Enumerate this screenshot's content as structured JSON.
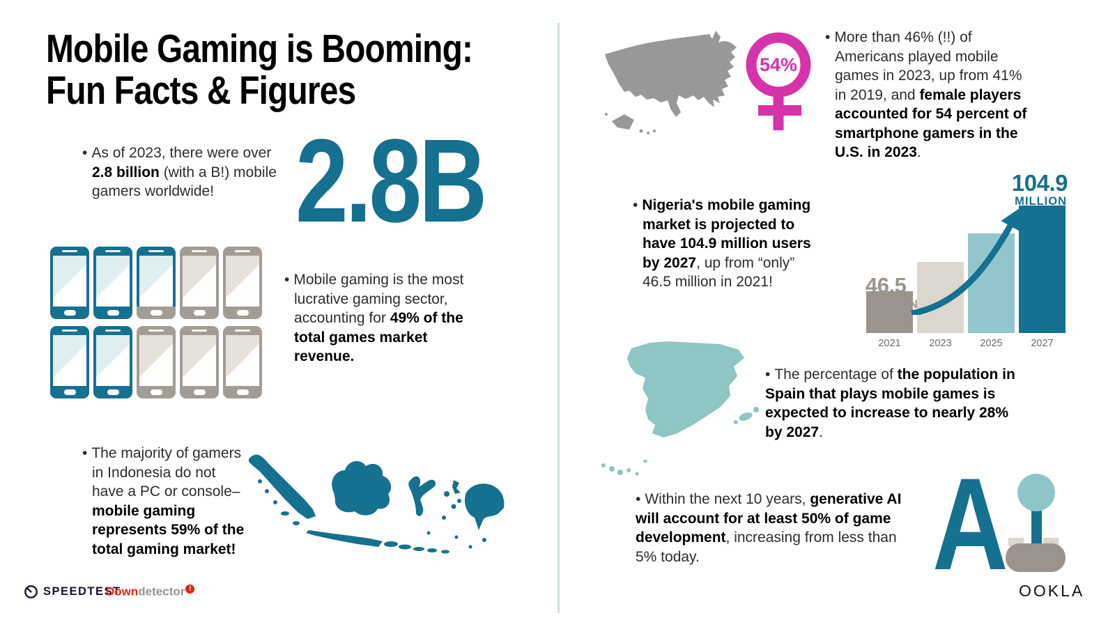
{
  "bullet": "•",
  "colors": {
    "teal": "#16708f",
    "teal_soft": "#8fc5c9",
    "teal_tint": "#dfeef0",
    "gray": "#9e9892",
    "beige": "#dcd7ce",
    "pink": "#d633ab",
    "red": "#e3231a",
    "navy": "#14152e",
    "divider": "#cddfe2"
  },
  "title": {
    "line1": "Mobile Gaming is Booming:",
    "line2": "Fun Facts & Figures"
  },
  "big_stat": {
    "value": "2.8B"
  },
  "female_badge": {
    "value": "54%"
  },
  "facts": {
    "worldwide": [
      {
        "t": "As of 2023, there were over "
      },
      {
        "t": "2.8 billion",
        "b": 1
      },
      {
        "t": " (with a B!) mobile gamers worldwide!"
      }
    ],
    "revenue": [
      {
        "t": "Mobile gaming is the most lucrative gaming sector, accounting for "
      },
      {
        "t": "49% of the total games market revenue.",
        "b": 1
      }
    ],
    "indonesia": [
      {
        "t": "The majority of gamers in Indonesia do not have a PC or console–"
      },
      {
        "t": "mobile gaming represents 59% of the total gaming market!",
        "b": 1
      }
    ],
    "usa": [
      {
        "t": "More than 46% (!!) of Americans played mobile games in 2023, up from 41% in 2019, and "
      },
      {
        "t": "female players accounted for 54 percent of smartphone gamers in the U.S. in 2023",
        "b": 1
      },
      {
        "t": "."
      }
    ],
    "nigeria": [
      {
        "t": "Nigeria's mobile gaming market is projected to have 104.9 million users by 2027",
        "b": 1
      },
      {
        "t": ", up from “only” 46.5 million in 2021!"
      }
    ],
    "spain": [
      {
        "t": "The percentage of "
      },
      {
        "t": "the population in Spain that plays mobile games is expected to increase to nearly 28% by 2027",
        "b": 1
      },
      {
        "t": "."
      }
    ],
    "ai": [
      {
        "t": "Within the next 10 years, "
      },
      {
        "t": "generative AI will account for at least 50% of game development",
        "b": 1
      },
      {
        "t": ", increasing from less than 5% today."
      }
    ]
  },
  "phones": {
    "states": [
      "teal",
      "teal",
      "partial",
      "gray",
      "gray",
      "teal",
      "teal",
      "gray",
      "gray",
      "gray"
    ]
  },
  "chart_data": {
    "type": "bar",
    "title": "",
    "categories": [
      "2021",
      "2023",
      "2025",
      "2027"
    ],
    "values": [
      46.5,
      66,
      85,
      104.9
    ],
    "unit": "million users",
    "start_label": {
      "value": "46.5",
      "unit": "MILLION"
    },
    "end_label": {
      "value": "104.9",
      "unit": "MILLION"
    },
    "bar_colors": [
      "#9b948c",
      "#dcd7ce",
      "#93c6cc",
      "#16708f"
    ],
    "bar_height_pct": [
      33,
      56,
      78,
      100
    ],
    "ylim": [
      0,
      110
    ],
    "grid": false,
    "legend": false
  },
  "ai_graphic": {
    "letter": "A"
  },
  "footer": {
    "speedtest": {
      "label": "SPEEDTEST"
    },
    "downdetector": {
      "part1": "Down",
      "part2": "detector",
      "badge": "!"
    },
    "ookla": {
      "label": "OOKLA"
    }
  }
}
